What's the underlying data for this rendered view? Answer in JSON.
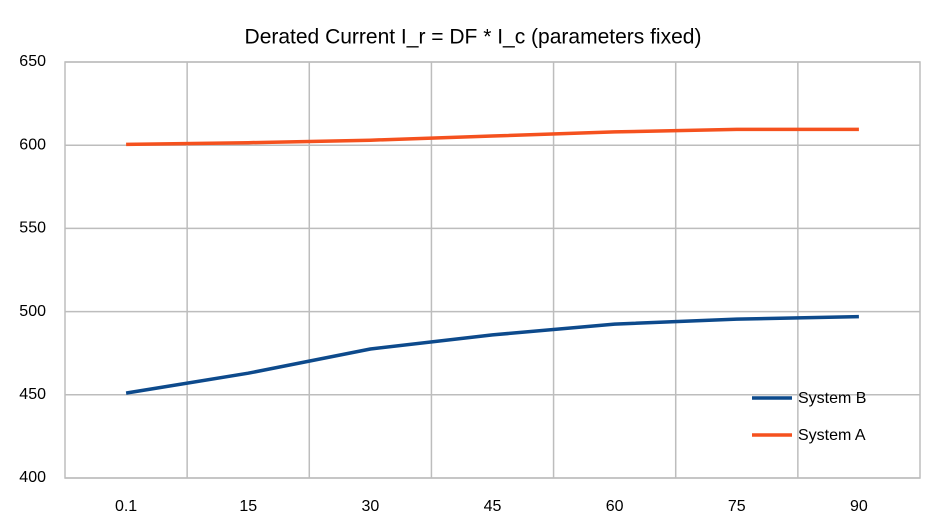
{
  "chart_data": {
    "type": "line",
    "title": "Derated Current I_r = DF * I_c  (parameters fixed)",
    "categories": [
      "0.1",
      "15",
      "30",
      "45",
      "60",
      "75",
      "90"
    ],
    "series": [
      {
        "name": "System B",
        "color": "#0d4a8c",
        "values": [
          451,
          463,
          477.5,
          486,
          492.5,
          495.5,
          497
        ]
      },
      {
        "name": "System A",
        "color": "#f5511e",
        "values": [
          600.5,
          601.5,
          603,
          605.5,
          608,
          609.5,
          609.5
        ]
      }
    ],
    "ylim": [
      400,
      650
    ],
    "yticks": [
      400,
      450,
      500,
      550,
      600,
      650
    ],
    "grid": true,
    "legend": "lower-right"
  }
}
